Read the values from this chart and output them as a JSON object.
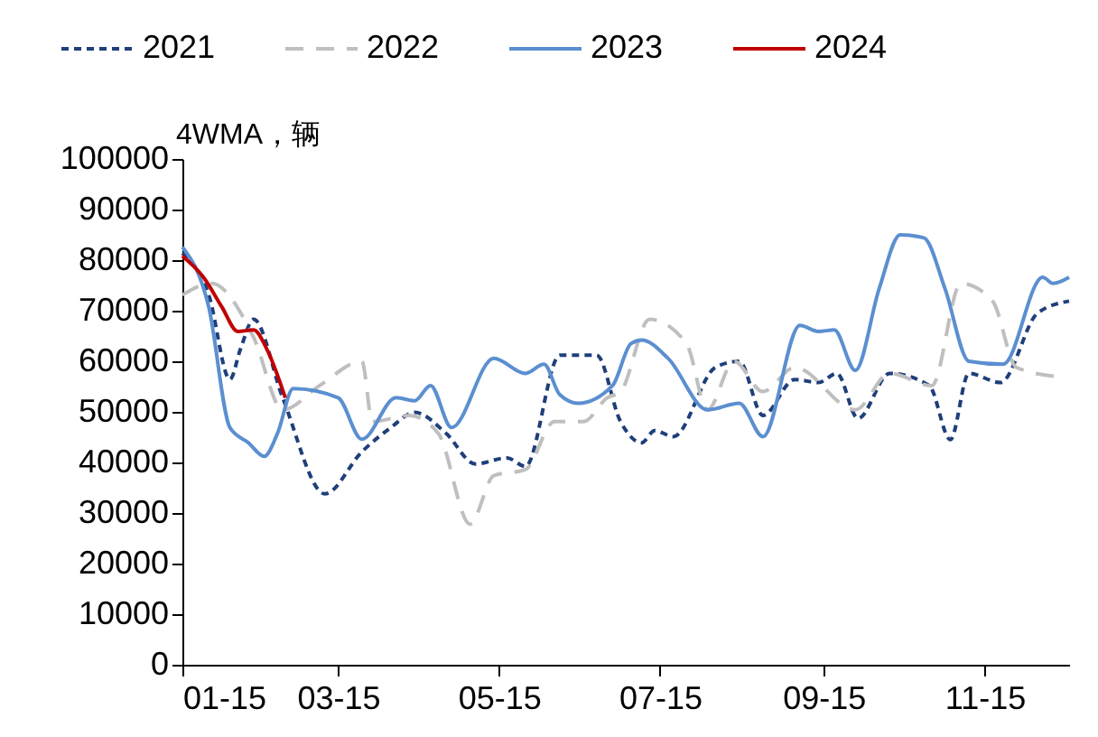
{
  "chart_data": {
    "type": "line",
    "ylabel": "4WMA，辆",
    "legend": "top",
    "grid": false,
    "xlim": [
      "--01-15",
      "--12-17"
    ],
    "xticks": [
      {
        "value": "--01-15",
        "label": "01-15"
      },
      {
        "value": "--03-15",
        "label": "03-15"
      },
      {
        "value": "--05-15",
        "label": "05-15"
      },
      {
        "value": "--07-15",
        "label": "07-15"
      },
      {
        "value": "--09-15",
        "label": "09-15"
      },
      {
        "value": "--11-15",
        "label": "11-15"
      }
    ],
    "ylim": [
      0,
      100000
    ],
    "yticks": [
      0,
      10000,
      20000,
      30000,
      40000,
      50000,
      60000,
      70000,
      80000,
      90000,
      100000
    ],
    "series": [
      {
        "name": "2021",
        "color": "#1f3f7a",
        "line_style": "dashed",
        "x": [
          "--01-15",
          "--01-25",
          "--02-02",
          "--02-06",
          "--02-11",
          "--02-22",
          "--03-10",
          "--03-24",
          "--04-04",
          "--04-13",
          "--04-25",
          "--05-06",
          "--05-18",
          "--05-25",
          "--06-07",
          "--06-21",
          "--06-30",
          "--07-08",
          "--07-13",
          "--07-20",
          "--08-05",
          "--08-14",
          "--08-23",
          "--09-04",
          "--09-13",
          "--09-20",
          "--09-28",
          "--10-10",
          "--10-25",
          "--11-02",
          "--11-09",
          "--11-21",
          "--12-05",
          "--12-17"
        ],
        "values": [
          81400,
          73100,
          56400,
          62400,
          68300,
          52800,
          33800,
          42100,
          46900,
          49900,
          45700,
          39700,
          40900,
          39200,
          61200,
          61200,
          48100,
          43900,
          46300,
          45100,
          58800,
          60000,
          49300,
          56400,
          55800,
          57600,
          48700,
          57600,
          55200,
          44500,
          57600,
          55800,
          69500,
          71900
        ]
      },
      {
        "name": "2022",
        "color": "#bfbfbf",
        "line_style": "dashed",
        "x": [
          "--01-15",
          "--01-26",
          "--02-11",
          "--02-22",
          "--03-08",
          "--03-24",
          "--03-28",
          "--04-11",
          "--04-22",
          "--05-04",
          "--05-13",
          "--05-25",
          "--06-05",
          "--06-16",
          "--06-25",
          "--06-30",
          "--07-11",
          "--07-25",
          "--08-02",
          "--08-12",
          "--08-23",
          "--09-04",
          "--09-27",
          "--10-10",
          "--10-26",
          "--11-06",
          "--11-18",
          "--11-27",
          "--12-12"
        ],
        "values": [
          73100,
          75400,
          64700,
          50400,
          55200,
          60000,
          48100,
          49300,
          45700,
          27800,
          37400,
          38600,
          48100,
          48100,
          52800,
          54000,
          68300,
          63500,
          50400,
          60000,
          54000,
          58800,
          50400,
          57600,
          55200,
          75400,
          71900,
          58800,
          57000
        ]
      },
      {
        "name": "2023",
        "color": "#5b8fd0",
        "line_style": "solid",
        "x": [
          "--01-15",
          "--01-25",
          "--02-02",
          "--02-09",
          "--02-15",
          "--02-20",
          "--02-26",
          "--03-15",
          "--03-24",
          "--04-06",
          "--04-13",
          "--04-19",
          "--04-27",
          "--05-13",
          "--05-25",
          "--06-01",
          "--06-07",
          "--06-14",
          "--06-27",
          "--07-04",
          "--07-08",
          "--07-18",
          "--08-02",
          "--08-14",
          "--08-23",
          "--09-06",
          "--09-13",
          "--09-19",
          "--09-27",
          "--10-06",
          "--10-14",
          "--10-23",
          "--10-31",
          "--11-09",
          "--11-22",
          "--12-07",
          "--12-11",
          "--12-17"
        ],
        "values": [
          82600,
          70700,
          46900,
          43900,
          41200,
          45700,
          54600,
          52800,
          44600,
          52800,
          52200,
          55200,
          46900,
          60600,
          57600,
          59400,
          53400,
          51700,
          55200,
          63500,
          64200,
          60600,
          50400,
          51700,
          45100,
          67100,
          65900,
          66200,
          58200,
          74300,
          85000,
          84400,
          74300,
          60000,
          59400,
          76600,
          75400,
          76600
        ]
      },
      {
        "name": "2024",
        "color": "#c00000",
        "line_style": "solid",
        "x": [
          "--01-15",
          "--01-23",
          "--01-30",
          "--02-05",
          "--02-11",
          "--02-16",
          "--02-23"
        ],
        "values": [
          80800,
          76600,
          70700,
          65900,
          66200,
          62400,
          52800
        ]
      }
    ]
  }
}
